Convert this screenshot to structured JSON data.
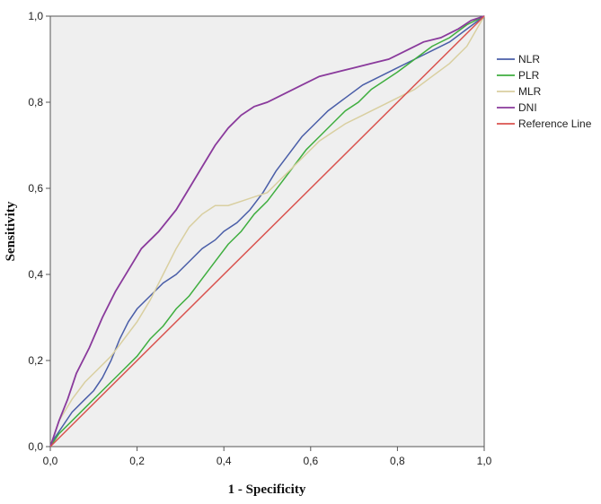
{
  "chart_data": {
    "type": "line",
    "title": "",
    "xlabel": "1 - Specificity",
    "ylabel": "Sensitivity",
    "xlim": [
      0,
      1
    ],
    "ylim": [
      0,
      1
    ],
    "x_ticks": [
      "0,0",
      "0,2",
      "0,4",
      "0,6",
      "0,8",
      "1,0"
    ],
    "y_ticks": [
      "0,0",
      "0,2",
      "0,4",
      "0,6",
      "0,8",
      "1,0"
    ],
    "legend_position": "right",
    "grid": false,
    "series": [
      {
        "name": "NLR",
        "color": "#4a5ea8",
        "points": [
          [
            0,
            0
          ],
          [
            0.01,
            0.02
          ],
          [
            0.03,
            0.05
          ],
          [
            0.05,
            0.08
          ],
          [
            0.08,
            0.11
          ],
          [
            0.1,
            0.13
          ],
          [
            0.12,
            0.16
          ],
          [
            0.14,
            0.2
          ],
          [
            0.16,
            0.25
          ],
          [
            0.18,
            0.29
          ],
          [
            0.2,
            0.32
          ],
          [
            0.23,
            0.35
          ],
          [
            0.26,
            0.38
          ],
          [
            0.29,
            0.4
          ],
          [
            0.32,
            0.43
          ],
          [
            0.35,
            0.46
          ],
          [
            0.38,
            0.48
          ],
          [
            0.4,
            0.5
          ],
          [
            0.43,
            0.52
          ],
          [
            0.46,
            0.55
          ],
          [
            0.49,
            0.59
          ],
          [
            0.52,
            0.64
          ],
          [
            0.55,
            0.68
          ],
          [
            0.58,
            0.72
          ],
          [
            0.61,
            0.75
          ],
          [
            0.64,
            0.78
          ],
          [
            0.68,
            0.81
          ],
          [
            0.72,
            0.84
          ],
          [
            0.76,
            0.86
          ],
          [
            0.8,
            0.88
          ],
          [
            0.84,
            0.9
          ],
          [
            0.88,
            0.92
          ],
          [
            0.92,
            0.94
          ],
          [
            0.96,
            0.97
          ],
          [
            1.0,
            1.0
          ]
        ]
      },
      {
        "name": "PLR",
        "color": "#3fae3f",
        "points": [
          [
            0,
            0
          ],
          [
            0.02,
            0.03
          ],
          [
            0.05,
            0.06
          ],
          [
            0.08,
            0.09
          ],
          [
            0.11,
            0.12
          ],
          [
            0.14,
            0.15
          ],
          [
            0.17,
            0.18
          ],
          [
            0.2,
            0.21
          ],
          [
            0.23,
            0.25
          ],
          [
            0.26,
            0.28
          ],
          [
            0.29,
            0.32
          ],
          [
            0.32,
            0.35
          ],
          [
            0.35,
            0.39
          ],
          [
            0.38,
            0.43
          ],
          [
            0.41,
            0.47
          ],
          [
            0.44,
            0.5
          ],
          [
            0.47,
            0.54
          ],
          [
            0.5,
            0.57
          ],
          [
            0.53,
            0.61
          ],
          [
            0.56,
            0.65
          ],
          [
            0.59,
            0.69
          ],
          [
            0.62,
            0.72
          ],
          [
            0.65,
            0.75
          ],
          [
            0.68,
            0.78
          ],
          [
            0.71,
            0.8
          ],
          [
            0.74,
            0.83
          ],
          [
            0.77,
            0.85
          ],
          [
            0.8,
            0.87
          ],
          [
            0.84,
            0.9
          ],
          [
            0.88,
            0.93
          ],
          [
            0.92,
            0.95
          ],
          [
            0.96,
            0.98
          ],
          [
            1.0,
            1.0
          ]
        ]
      },
      {
        "name": "MLR",
        "color": "#d9cfa0",
        "points": [
          [
            0,
            0
          ],
          [
            0.02,
            0.06
          ],
          [
            0.05,
            0.11
          ],
          [
            0.08,
            0.15
          ],
          [
            0.11,
            0.18
          ],
          [
            0.14,
            0.21
          ],
          [
            0.17,
            0.25
          ],
          [
            0.2,
            0.29
          ],
          [
            0.23,
            0.34
          ],
          [
            0.26,
            0.4
          ],
          [
            0.29,
            0.46
          ],
          [
            0.32,
            0.51
          ],
          [
            0.35,
            0.54
          ],
          [
            0.38,
            0.56
          ],
          [
            0.41,
            0.56
          ],
          [
            0.44,
            0.57
          ],
          [
            0.47,
            0.58
          ],
          [
            0.5,
            0.59
          ],
          [
            0.53,
            0.62
          ],
          [
            0.56,
            0.65
          ],
          [
            0.59,
            0.68
          ],
          [
            0.62,
            0.71
          ],
          [
            0.65,
            0.73
          ],
          [
            0.68,
            0.75
          ],
          [
            0.72,
            0.77
          ],
          [
            0.76,
            0.79
          ],
          [
            0.8,
            0.81
          ],
          [
            0.84,
            0.83
          ],
          [
            0.88,
            0.86
          ],
          [
            0.92,
            0.89
          ],
          [
            0.96,
            0.93
          ],
          [
            1.0,
            1.0
          ]
        ]
      },
      {
        "name": "DNI",
        "color": "#8a3a9c",
        "points": [
          [
            0,
            0
          ],
          [
            0.02,
            0.06
          ],
          [
            0.04,
            0.11
          ],
          [
            0.06,
            0.17
          ],
          [
            0.09,
            0.23
          ],
          [
            0.12,
            0.3
          ],
          [
            0.15,
            0.36
          ],
          [
            0.18,
            0.41
          ],
          [
            0.21,
            0.46
          ],
          [
            0.25,
            0.5
          ],
          [
            0.29,
            0.55
          ],
          [
            0.32,
            0.6
          ],
          [
            0.35,
            0.65
          ],
          [
            0.38,
            0.7
          ],
          [
            0.41,
            0.74
          ],
          [
            0.44,
            0.77
          ],
          [
            0.47,
            0.79
          ],
          [
            0.5,
            0.8
          ],
          [
            0.54,
            0.82
          ],
          [
            0.58,
            0.84
          ],
          [
            0.62,
            0.86
          ],
          [
            0.66,
            0.87
          ],
          [
            0.7,
            0.88
          ],
          [
            0.74,
            0.89
          ],
          [
            0.78,
            0.9
          ],
          [
            0.82,
            0.92
          ],
          [
            0.86,
            0.94
          ],
          [
            0.9,
            0.95
          ],
          [
            0.94,
            0.97
          ],
          [
            0.97,
            0.99
          ],
          [
            1.0,
            1.0
          ]
        ]
      },
      {
        "name": "Reference Line",
        "color": "#d9534f",
        "points": [
          [
            0,
            0
          ],
          [
            1,
            1
          ]
        ]
      }
    ]
  }
}
